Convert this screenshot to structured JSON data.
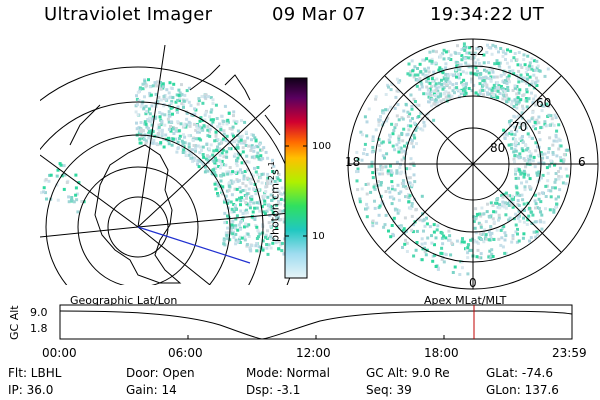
{
  "header": {
    "instrument": "Ultraviolet Imager",
    "date": "09 Mar 07",
    "time": "19:34:22 UT"
  },
  "colorbar": {
    "unit_label": "photon cm",
    "unit_sup1": "-2",
    "unit_mid": "s",
    "unit_sup2": "-1",
    "ticks": [
      "100",
      "10"
    ]
  },
  "polar_plot": {
    "mlt_labels": {
      "top": "12",
      "left": "18",
      "right": "6",
      "bottom": "0"
    },
    "lat_labels": [
      "60",
      "70",
      "80"
    ]
  },
  "timeline": {
    "axis_label": "GC Alt",
    "y_ticks": [
      "9.0",
      "1.8"
    ],
    "left_caption": "Geographic Lat/Lon",
    "right_caption": "Apex  MLat/MLT",
    "x_ticks": [
      "00:00",
      "06:00",
      "12:00",
      "18:00",
      "23:59"
    ],
    "marker_color": "#c00000"
  },
  "info": {
    "flt": "Flt: LBHL",
    "ip": "IP: 36.0",
    "door": "Door: Open",
    "gain": "Gain: 14",
    "mode": "Mode: Normal",
    "dsp": "Dsp:    -3.1",
    "gc_alt": "GC Alt: 9.0 Re",
    "seq": "Seq: 39",
    "glat": "GLat: -74.6",
    "glon": "GLon: 137.6"
  }
}
